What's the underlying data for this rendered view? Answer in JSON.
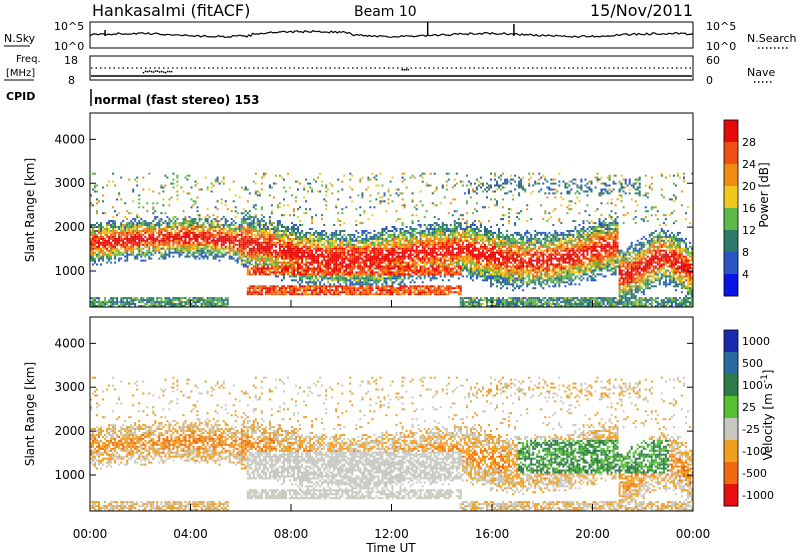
{
  "header": {
    "station": "Hankasalmi (fitACF)",
    "beam": "Beam 10",
    "date": "15/Nov/2011"
  },
  "noise_panel": {
    "left_label": "N.Sky",
    "right_label": "N.Search",
    "left_ticks": [
      "10^5",
      "10^0"
    ],
    "right_ticks": [
      "10^5",
      "10^0"
    ]
  },
  "freq_panel": {
    "label_line1": "Freq.",
    "label_line2": "[MHz]",
    "left_ticks": [
      "18",
      "8"
    ],
    "right_label": "Nave",
    "right_ticks": [
      "60",
      "0"
    ]
  },
  "cpid_panel": {
    "label": "CPID",
    "mode_text": "normal (fast stereo) 153"
  },
  "colors": {
    "power_scale": [
      "#0a14e6",
      "#2a55c8",
      "#2f7a6a",
      "#5fb84a",
      "#f0c81e",
      "#f08c14",
      "#f05014",
      "#e60a0a"
    ],
    "velocity_scale": [
      "#1a2ab0",
      "#2b6aa0",
      "#2e7a4a",
      "#55c030",
      "#c8c8c0",
      "#f0a020",
      "#f06a10",
      "#e61010"
    ]
  },
  "chart_data": [
    {
      "type": "heatmap",
      "panel": "power",
      "ylabel": "Slant Range [km]",
      "xlim": [
        "00:00",
        "24:00"
      ],
      "ylim": [
        180,
        4600
      ],
      "yticks": [
        "1000",
        "2000",
        "3000",
        "4000"
      ],
      "colorbar": {
        "label": "Power [dB]",
        "range": [
          0,
          32
        ],
        "tick_labels": [
          "4",
          "8",
          "12",
          "16",
          "20",
          "24",
          "28"
        ]
      }
    },
    {
      "type": "heatmap",
      "panel": "velocity",
      "ylabel": "Slant Range [km]",
      "xlabel": "Time UT",
      "xlim": [
        "00:00",
        "24:00"
      ],
      "ylim": [
        180,
        4600
      ],
      "yticks": [
        "1000",
        "2000",
        "3000",
        "4000"
      ],
      "xticks": [
        "00:00",
        "04:00",
        "08:00",
        "12:00",
        "16:00",
        "20:00",
        "00:00"
      ],
      "colorbar": {
        "label": "Velocity [m s",
        "label_superscript": "-1",
        "label_close": "]",
        "tick_labels": [
          "1000",
          "500",
          "100",
          "25",
          "-25",
          "-100",
          "-500",
          "-1000"
        ]
      }
    }
  ]
}
